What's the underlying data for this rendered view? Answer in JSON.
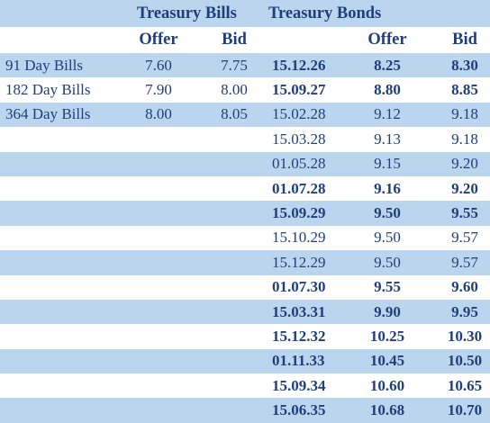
{
  "header": {
    "bills_title": "Treasury Bills",
    "bonds_title": "Treasury Bonds",
    "offer_label": "Offer",
    "bid_label": "Bid"
  },
  "rows": [
    {
      "bill": "91 Day Bills",
      "bill_offer": "7.60",
      "bill_bid": "7.75",
      "date": "15.12.26",
      "offer": "8.25",
      "bid": "8.30",
      "bold": true
    },
    {
      "bill": "182 Day Bills",
      "bill_offer": "7.90",
      "bill_bid": "8.00",
      "date": "15.09.27",
      "offer": "8.80",
      "bid": "8.85",
      "bold": true
    },
    {
      "bill": "364 Day Bills",
      "bill_offer": "8.00",
      "bill_bid": "8.05",
      "date": "15.02.28",
      "offer": "9.12",
      "bid": "9.18",
      "bold": false
    },
    {
      "bill": "",
      "bill_offer": "",
      "bill_bid": "",
      "date": "15.03.28",
      "offer": "9.13",
      "bid": "9.18",
      "bold": false
    },
    {
      "bill": "",
      "bill_offer": "",
      "bill_bid": "",
      "date": "01.05.28",
      "offer": "9.15",
      "bid": "9.20",
      "bold": false
    },
    {
      "bill": "",
      "bill_offer": "",
      "bill_bid": "",
      "date": "01.07.28",
      "offer": "9.16",
      "bid": "9.20",
      "bold": true
    },
    {
      "bill": "",
      "bill_offer": "",
      "bill_bid": "",
      "date": "15.09.29",
      "offer": "9.50",
      "bid": "9.55",
      "bold": true
    },
    {
      "bill": "",
      "bill_offer": "",
      "bill_bid": "",
      "date": "15.10.29",
      "offer": "9.50",
      "bid": "9.57",
      "bold": false
    },
    {
      "bill": "",
      "bill_offer": "",
      "bill_bid": "",
      "date": "15.12.29",
      "offer": "9.50",
      "bid": "9.57",
      "bold": false
    },
    {
      "bill": "",
      "bill_offer": "",
      "bill_bid": "",
      "date": "01.07.30",
      "offer": "9.55",
      "bid": "9.60",
      "bold": true
    },
    {
      "bill": "",
      "bill_offer": "",
      "bill_bid": "",
      "date": "15.03.31",
      "offer": "9.90",
      "bid": "9.95",
      "bold": true
    },
    {
      "bill": "",
      "bill_offer": "",
      "bill_bid": "",
      "date": "15.12.32",
      "offer": "10.25",
      "bid": "10.30",
      "bold": true
    },
    {
      "bill": "",
      "bill_offer": "",
      "bill_bid": "",
      "date": "01.11.33",
      "offer": "10.45",
      "bid": "10.50",
      "bold": true
    },
    {
      "bill": "",
      "bill_offer": "",
      "bill_bid": "",
      "date": "15.09.34",
      "offer": "10.60",
      "bid": "10.65",
      "bold": true
    },
    {
      "bill": "",
      "bill_offer": "",
      "bill_bid": "",
      "date": "15.06.35",
      "offer": "10.68",
      "bid": "10.70",
      "bold": true
    }
  ],
  "colors": {
    "text": "#1f3f7a",
    "stripe": "#bcd5ee",
    "background": "#ffffff"
  }
}
